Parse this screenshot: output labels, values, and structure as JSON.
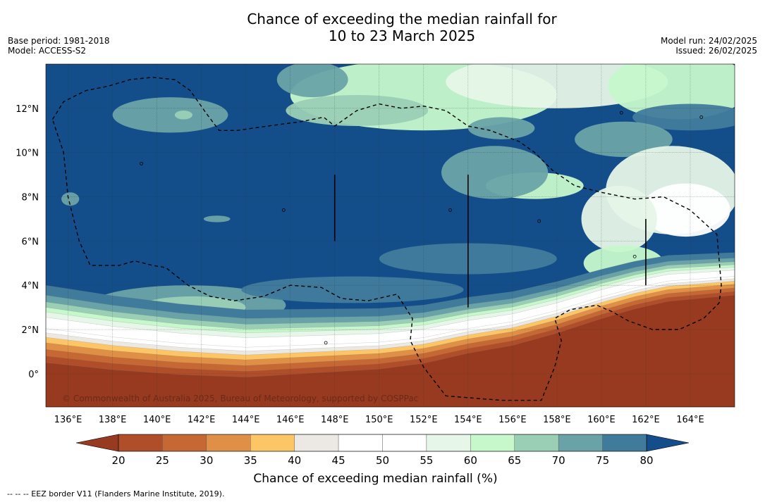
{
  "title": {
    "line1": "Chance of exceeding the median rainfall for",
    "line2": "10 to 23 March 2025"
  },
  "meta_left": {
    "base_period": "Base period: 1981-2018",
    "model": "Model: ACCESS-S2"
  },
  "meta_right": {
    "model_run": "Model run: 24/02/2025",
    "issued": "Issued: 26/02/2025"
  },
  "map": {
    "lon_min": 135,
    "lon_max": 166,
    "lat_min": -1.5,
    "lat_max": 14,
    "lon_ticks": [
      136,
      138,
      140,
      142,
      144,
      146,
      148,
      150,
      152,
      154,
      156,
      158,
      160,
      162,
      164
    ],
    "lon_tick_labels": [
      "136°E",
      "138°E",
      "140°E",
      "142°E",
      "144°E",
      "146°E",
      "148°E",
      "150°E",
      "152°E",
      "154°E",
      "156°E",
      "158°E",
      "160°E",
      "162°E",
      "164°E"
    ],
    "lat_ticks": [
      0,
      2,
      4,
      6,
      8,
      10,
      12
    ],
    "lat_tick_labels": [
      "0°",
      "2°N",
      "4°N",
      "6°N",
      "8°N",
      "10°N",
      "12°N"
    ],
    "grid": true,
    "copyright": "© Commonwealth of Australia 2025, Bureau of Meteorology, supported by COSPPac",
    "eez_border": [
      [
        135.3,
        11.5
      ],
      [
        135.8,
        12.3
      ],
      [
        136.8,
        12.8
      ],
      [
        137.8,
        13.0
      ],
      [
        138.8,
        13.3
      ],
      [
        139.8,
        13.4
      ],
      [
        140.8,
        13.3
      ],
      [
        141.5,
        12.8
      ],
      [
        142.2,
        11.8
      ],
      [
        142.8,
        11.0
      ],
      [
        143.6,
        11.0
      ],
      [
        145.0,
        11.2
      ],
      [
        146.5,
        11.4
      ],
      [
        147.5,
        11.6
      ],
      [
        148.0,
        11.2
      ],
      [
        149.0,
        11.9
      ],
      [
        150.0,
        12.2
      ],
      [
        151.0,
        12.0
      ],
      [
        152.0,
        12.1
      ],
      [
        153.0,
        11.9
      ],
      [
        154.0,
        11.2
      ],
      [
        155.0,
        11.0
      ],
      [
        156.3,
        10.5
      ],
      [
        157.0,
        10.0
      ],
      [
        157.8,
        9.2
      ],
      [
        158.8,
        8.5
      ],
      [
        160.0,
        8.2
      ],
      [
        161.5,
        7.9
      ],
      [
        162.8,
        8.0
      ],
      [
        164.0,
        7.4
      ],
      [
        165.2,
        6.3
      ],
      [
        165.4,
        4.0
      ],
      [
        165.3,
        3.2
      ],
      [
        164.6,
        2.5
      ],
      [
        163.5,
        2.0
      ],
      [
        162.3,
        2.0
      ],
      [
        161.2,
        2.4
      ],
      [
        160.5,
        2.8
      ],
      [
        159.8,
        3.1
      ],
      [
        158.6,
        2.9
      ],
      [
        157.9,
        2.5
      ],
      [
        158.2,
        1.5
      ],
      [
        157.9,
        0.3
      ],
      [
        157.3,
        -1.2
      ],
      [
        155.5,
        -1.2
      ],
      [
        153.0,
        -1.0
      ],
      [
        152.0,
        0.3
      ],
      [
        151.4,
        1.5
      ],
      [
        151.5,
        2.5
      ],
      [
        150.8,
        3.6
      ],
      [
        149.5,
        3.3
      ],
      [
        148.3,
        3.4
      ],
      [
        147.4,
        3.9
      ],
      [
        146.0,
        4.0
      ],
      [
        144.8,
        3.5
      ],
      [
        143.5,
        3.3
      ],
      [
        142.4,
        3.5
      ],
      [
        141.4,
        4.0
      ],
      [
        140.4,
        4.8
      ],
      [
        139.8,
        4.9
      ],
      [
        139.0,
        5.1
      ],
      [
        138.3,
        4.9
      ],
      [
        137.0,
        4.9
      ],
      [
        136.5,
        6.0
      ],
      [
        136.0,
        8.0
      ],
      [
        135.8,
        10.0
      ],
      [
        135.3,
        11.5
      ]
    ],
    "islands": [
      [
        139.3,
        9.5
      ],
      [
        145.7,
        7.4
      ],
      [
        153.2,
        7.4
      ],
      [
        157.2,
        6.9
      ],
      [
        160.9,
        11.8
      ],
      [
        164.5,
        11.6
      ],
      [
        147.6,
        1.4
      ],
      [
        161.5,
        5.3
      ]
    ]
  },
  "chart_data": {
    "type": "heatmap",
    "title": "Chance of exceeding the median rainfall for 10 to 23 March 2025",
    "xlabel": "",
    "ylabel": "",
    "xlim": [
      135,
      166
    ],
    "ylim": [
      -1.5,
      14
    ],
    "colorbar": {
      "label": "Chance of exceeding median rainfall (%)",
      "ticks": [
        20,
        25,
        30,
        35,
        40,
        45,
        50,
        55,
        60,
        65,
        70,
        75,
        80
      ],
      "bins": [
        {
          "from": 0,
          "to": 20,
          "color": "#983a20"
        },
        {
          "from": 20,
          "to": 25,
          "color": "#b04e2a"
        },
        {
          "from": 25,
          "to": 30,
          "color": "#c66834"
        },
        {
          "from": 30,
          "to": 35,
          "color": "#df8f46"
        },
        {
          "from": 35,
          "to": 40,
          "color": "#fcc666"
        },
        {
          "from": 40,
          "to": 45,
          "color": "#ece9e4"
        },
        {
          "from": 45,
          "to": 50,
          "color": "#ffffff"
        },
        {
          "from": 50,
          "to": 55,
          "color": "#ffffff"
        },
        {
          "from": 55,
          "to": 60,
          "color": "#e6f6e8"
        },
        {
          "from": 60,
          "to": 65,
          "color": "#c6f8cb"
        },
        {
          "from": 65,
          "to": 70,
          "color": "#9acfb6"
        },
        {
          "from": 70,
          "to": 75,
          "color": "#6aa3a7"
        },
        {
          "from": 75,
          "to": 80,
          "color": "#417b9c"
        },
        {
          "from": 80,
          "to": 100,
          "color": "#144e8a"
        }
      ]
    },
    "field": {
      "background_percent": 85,
      "south_boundary": {
        "lon": [
          135,
          138,
          141,
          144,
          147,
          150,
          152,
          154,
          156,
          158,
          160,
          161.5,
          163,
          166
        ],
        "lat": [
          2.4,
          2.0,
          1.7,
          1.5,
          1.6,
          1.7,
          1.9,
          2.3,
          2.6,
          3.1,
          3.7,
          4.1,
          4.4,
          4.6
        ]
      },
      "blobs": [
        {
          "lon": 152.0,
          "lat": 12.6,
          "rx": 6.0,
          "ry": 1.6,
          "value": 62
        },
        {
          "lon": 158.0,
          "lat": 13.2,
          "rx": 5.0,
          "ry": 1.2,
          "value": 58
        },
        {
          "lon": 163.5,
          "lat": 13.0,
          "rx": 3.2,
          "ry": 1.5,
          "value": 60
        },
        {
          "lon": 149.0,
          "lat": 11.9,
          "rx": 3.2,
          "ry": 0.7,
          "value": 68
        },
        {
          "lon": 147.0,
          "lat": 13.3,
          "rx": 1.6,
          "ry": 0.8,
          "value": 72
        },
        {
          "lon": 164.0,
          "lat": 11.6,
          "rx": 2.6,
          "ry": 0.6,
          "value": 76
        },
        {
          "lon": 161.0,
          "lat": 10.6,
          "rx": 2.2,
          "ry": 0.8,
          "value": 74
        },
        {
          "lon": 163.2,
          "lat": 8.3,
          "rx": 3.0,
          "ry": 2.0,
          "value": 55
        },
        {
          "lon": 163.8,
          "lat": 7.4,
          "rx": 2.0,
          "ry": 1.2,
          "value": 48
        },
        {
          "lon": 160.8,
          "lat": 7.0,
          "rx": 1.7,
          "ry": 1.5,
          "value": 58
        },
        {
          "lon": 157.0,
          "lat": 8.5,
          "rx": 2.2,
          "ry": 0.6,
          "value": 64
        },
        {
          "lon": 155.2,
          "lat": 9.1,
          "rx": 2.4,
          "ry": 1.2,
          "value": 70
        },
        {
          "lon": 161.0,
          "lat": 5.0,
          "rx": 1.8,
          "ry": 0.8,
          "value": 64
        },
        {
          "lon": 140.6,
          "lat": 11.7,
          "rx": 2.6,
          "ry": 0.8,
          "value": 74
        },
        {
          "lon": 141.2,
          "lat": 11.7,
          "rx": 0.4,
          "ry": 0.2,
          "value": 66
        },
        {
          "lon": 141.4,
          "lat": 3.1,
          "rx": 4.4,
          "ry": 0.9,
          "value": 74
        },
        {
          "lon": 141.6,
          "lat": 3.0,
          "rx": 2.4,
          "ry": 0.5,
          "value": 68
        },
        {
          "lon": 141.0,
          "lat": 2.9,
          "rx": 1.3,
          "ry": 0.15,
          "value": 62
        },
        {
          "lon": 154.0,
          "lat": 5.2,
          "rx": 4.0,
          "ry": 0.7,
          "value": 76
        },
        {
          "lon": 148.8,
          "lat": 3.8,
          "rx": 5.0,
          "ry": 0.6,
          "value": 77
        },
        {
          "lon": 142.7,
          "lat": 7.0,
          "rx": 0.6,
          "ry": 0.15,
          "value": 74
        },
        {
          "lon": 136.1,
          "lat": 7.9,
          "rx": 0.4,
          "ry": 0.3,
          "value": 72
        },
        {
          "lon": 155.5,
          "lat": 11.1,
          "rx": 1.5,
          "ry": 0.5,
          "value": 72
        }
      ]
    }
  },
  "colorbar_title": "Chance of exceeding median rainfall (%)",
  "footer": "--  --  -- EEZ border V11 (Flanders Marine Institute, 2019)."
}
